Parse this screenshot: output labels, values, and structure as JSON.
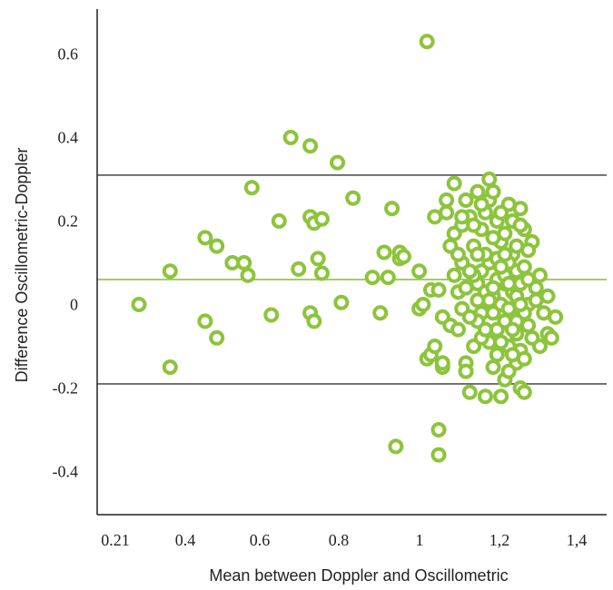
{
  "chart_data": {
    "type": "scatter",
    "xlabel": "Mean between Doppler and Oscillometric",
    "ylabel": "Difference Oscillometric-Doppler",
    "xlim": [
      0.21,
      1.4
    ],
    "ylim": [
      -0.48,
      0.7
    ],
    "x_ticks": [
      {
        "value": 0.21,
        "label": "0.21"
      },
      {
        "value": 0.4,
        "label": "0.4"
      },
      {
        "value": 0.6,
        "label": "0.6"
      },
      {
        "value": 0.8,
        "label": "0.8"
      },
      {
        "value": 1.0,
        "label": "1"
      },
      {
        "value": 1.2,
        "label": "1,2"
      },
      {
        "value": 1.4,
        "label": "1,4"
      }
    ],
    "y_ticks": [
      {
        "value": 0.6,
        "label": "0.6"
      },
      {
        "value": 0.4,
        "label": "0.4"
      },
      {
        "value": 0.2,
        "label": "0.2"
      },
      {
        "value": 0.0,
        "label": "0"
      },
      {
        "value": -0.2,
        "label": "-0.2"
      },
      {
        "value": -0.4,
        "label": "-0.4"
      }
    ],
    "grid": false,
    "reference_lines": [
      {
        "y": 0.31,
        "color": "#555555"
      },
      {
        "y": 0.06,
        "color": "#8cc43c"
      },
      {
        "y": -0.19,
        "color": "#555555"
      }
    ],
    "marker_color": "#8cc43c",
    "points": [
      {
        "x": 0.28,
        "y": 0.0
      },
      {
        "x": 0.36,
        "y": -0.15
      },
      {
        "x": 0.36,
        "y": 0.08
      },
      {
        "x": 0.45,
        "y": 0.16
      },
      {
        "x": 0.45,
        "y": -0.04
      },
      {
        "x": 0.48,
        "y": 0.14
      },
      {
        "x": 0.48,
        "y": -0.08
      },
      {
        "x": 0.52,
        "y": 0.1
      },
      {
        "x": 0.55,
        "y": 0.1
      },
      {
        "x": 0.56,
        "y": 0.07
      },
      {
        "x": 0.57,
        "y": 0.28
      },
      {
        "x": 0.62,
        "y": -0.025
      },
      {
        "x": 0.64,
        "y": 0.2
      },
      {
        "x": 0.67,
        "y": 0.4
      },
      {
        "x": 0.69,
        "y": 0.085
      },
      {
        "x": 0.72,
        "y": 0.38
      },
      {
        "x": 0.72,
        "y": 0.21
      },
      {
        "x": 0.73,
        "y": 0.195
      },
      {
        "x": 0.72,
        "y": -0.02
      },
      {
        "x": 0.73,
        "y": -0.04
      },
      {
        "x": 0.74,
        "y": 0.11
      },
      {
        "x": 0.75,
        "y": 0.075
      },
      {
        "x": 0.75,
        "y": 0.205
      },
      {
        "x": 0.79,
        "y": 0.34
      },
      {
        "x": 0.8,
        "y": 0.005
      },
      {
        "x": 0.83,
        "y": 0.255
      },
      {
        "x": 0.88,
        "y": 0.065
      },
      {
        "x": 0.9,
        "y": -0.02
      },
      {
        "x": 0.91,
        "y": 0.125
      },
      {
        "x": 0.92,
        "y": 0.065
      },
      {
        "x": 0.93,
        "y": 0.23
      },
      {
        "x": 0.94,
        "y": -0.34
      },
      {
        "x": 0.95,
        "y": 0.11
      },
      {
        "x": 0.95,
        "y": 0.125
      },
      {
        "x": 0.96,
        "y": 0.115
      },
      {
        "x": 1.0,
        "y": -0.01
      },
      {
        "x": 1.0,
        "y": 0.08
      },
      {
        "x": 1.01,
        "y": 0.0
      },
      {
        "x": 1.02,
        "y": 0.63
      },
      {
        "x": 1.02,
        "y": -0.13
      },
      {
        "x": 1.03,
        "y": 0.035
      },
      {
        "x": 1.03,
        "y": -0.12
      },
      {
        "x": 1.04,
        "y": 0.21
      },
      {
        "x": 1.04,
        "y": -0.1
      },
      {
        "x": 1.05,
        "y": 0.035
      },
      {
        "x": 1.05,
        "y": -0.3
      },
      {
        "x": 1.05,
        "y": -0.36
      },
      {
        "x": 1.06,
        "y": -0.15
      },
      {
        "x": 1.06,
        "y": -0.03
      },
      {
        "x": 1.06,
        "y": -0.14
      },
      {
        "x": 1.07,
        "y": 0.25
      },
      {
        "x": 1.07,
        "y": 0.22
      },
      {
        "x": 1.08,
        "y": 0.14
      },
      {
        "x": 1.08,
        "y": -0.05
      },
      {
        "x": 1.09,
        "y": 0.29
      },
      {
        "x": 1.09,
        "y": 0.17
      },
      {
        "x": 1.09,
        "y": 0.07
      },
      {
        "x": 1.1,
        "y": -0.06
      },
      {
        "x": 1.1,
        "y": 0.03
      },
      {
        "x": 1.11,
        "y": 0.1
      },
      {
        "x": 1.11,
        "y": -0.01
      },
      {
        "x": 1.12,
        "y": -0.14
      },
      {
        "x": 1.12,
        "y": -0.16
      },
      {
        "x": 1.12,
        "y": 0.25
      },
      {
        "x": 1.13,
        "y": -0.21
      },
      {
        "x": 1.13,
        "y": 0.21
      },
      {
        "x": 1.14,
        "y": 0.14
      },
      {
        "x": 1.14,
        "y": -0.1
      },
      {
        "x": 1.15,
        "y": 0.27
      },
      {
        "x": 1.15,
        "y": 0.05
      },
      {
        "x": 1.16,
        "y": 0.18
      },
      {
        "x": 1.16,
        "y": -0.02
      },
      {
        "x": 1.17,
        "y": -0.22
      },
      {
        "x": 1.17,
        "y": 0.22
      },
      {
        "x": 1.18,
        "y": 0.1
      },
      {
        "x": 1.18,
        "y": 0.3
      },
      {
        "x": 1.19,
        "y": -0.15
      },
      {
        "x": 1.19,
        "y": 0.02
      },
      {
        "x": 1.2,
        "y": 0.2
      },
      {
        "x": 1.2,
        "y": -0.06
      },
      {
        "x": 1.21,
        "y": -0.22
      },
      {
        "x": 1.21,
        "y": 0.15
      },
      {
        "x": 1.22,
        "y": -0.18
      },
      {
        "x": 1.22,
        "y": 0.05
      },
      {
        "x": 1.23,
        "y": 0.24
      },
      {
        "x": 1.23,
        "y": -0.1
      },
      {
        "x": 1.24,
        "y": 0.12
      },
      {
        "x": 1.24,
        "y": -0.03
      },
      {
        "x": 1.25,
        "y": -0.14
      },
      {
        "x": 1.25,
        "y": 0.08
      },
      {
        "x": 1.26,
        "y": 0.23
      },
      {
        "x": 1.26,
        "y": -0.2
      },
      {
        "x": 1.27,
        "y": -0.21
      },
      {
        "x": 1.27,
        "y": 0.18
      },
      {
        "x": 1.28,
        "y": 0.0
      },
      {
        "x": 1.28,
        "y": -0.05
      },
      {
        "x": 1.29,
        "y": 0.15
      },
      {
        "x": 1.3,
        "y": 0.04
      },
      {
        "x": 1.31,
        "y": -0.1
      },
      {
        "x": 1.31,
        "y": 0.07
      },
      {
        "x": 1.32,
        "y": -0.02
      },
      {
        "x": 1.33,
        "y": -0.07
      },
      {
        "x": 1.33,
        "y": 0.02
      },
      {
        "x": 1.34,
        "y": -0.08
      },
      {
        "x": 1.35,
        "y": -0.03
      },
      {
        "x": 1.14,
        "y": 0.19
      },
      {
        "x": 1.15,
        "y": -0.04
      },
      {
        "x": 1.16,
        "y": 0.08
      },
      {
        "x": 1.17,
        "y": 0.12
      },
      {
        "x": 1.18,
        "y": -0.09
      },
      {
        "x": 1.18,
        "y": 0.25
      },
      {
        "x": 1.19,
        "y": 0.16
      },
      {
        "x": 1.2,
        "y": -0.12
      },
      {
        "x": 1.2,
        "y": 0.06
      },
      {
        "x": 1.21,
        "y": 0.0
      },
      {
        "x": 1.21,
        "y": 0.22
      },
      {
        "x": 1.22,
        "y": -0.04
      },
      {
        "x": 1.22,
        "y": 0.17
      },
      {
        "x": 1.23,
        "y": 0.1
      },
      {
        "x": 1.23,
        "y": -0.16
      },
      {
        "x": 1.24,
        "y": 0.03
      },
      {
        "x": 1.24,
        "y": 0.2
      },
      {
        "x": 1.25,
        "y": -0.07
      },
      {
        "x": 1.25,
        "y": 0.14
      },
      {
        "x": 1.26,
        "y": 0.05
      },
      {
        "x": 1.26,
        "y": -0.11
      },
      {
        "x": 1.27,
        "y": 0.09
      },
      {
        "x": 1.27,
        "y": -0.02
      },
      {
        "x": 1.28,
        "y": 0.13
      },
      {
        "x": 1.29,
        "y": -0.08
      },
      {
        "x": 1.3,
        "y": 0.01
      },
      {
        "x": 1.12,
        "y": 0.04
      },
      {
        "x": 1.13,
        "y": -0.03
      },
      {
        "x": 1.14,
        "y": 0.07
      },
      {
        "x": 1.15,
        "y": 0.12
      },
      {
        "x": 1.16,
        "y": -0.08
      },
      {
        "x": 1.17,
        "y": 0.03
      },
      {
        "x": 1.18,
        "y": 0.01
      },
      {
        "x": 1.19,
        "y": 0.04
      },
      {
        "x": 1.2,
        "y": 0.11
      },
      {
        "x": 1.21,
        "y": -0.09
      },
      {
        "x": 1.22,
        "y": 0.07
      },
      {
        "x": 1.23,
        "y": -0.01
      },
      {
        "x": 1.24,
        "y": -0.12
      },
      {
        "x": 1.25,
        "y": 0.02
      },
      {
        "x": 1.26,
        "y": 0.19
      },
      {
        "x": 1.27,
        "y": -0.13
      },
      {
        "x": 1.28,
        "y": 0.06
      },
      {
        "x": 1.1,
        "y": 0.12
      },
      {
        "x": 1.11,
        "y": 0.19
      },
      {
        "x": 1.13,
        "y": 0.08
      },
      {
        "x": 1.15,
        "y": 0.01
      },
      {
        "x": 1.17,
        "y": -0.06
      },
      {
        "x": 1.19,
        "y": -0.02
      },
      {
        "x": 1.21,
        "y": 0.09
      },
      {
        "x": 1.23,
        "y": 0.05
      },
      {
        "x": 1.25,
        "y": -0.04
      },
      {
        "x": 1.11,
        "y": 0.21
      },
      {
        "x": 1.16,
        "y": 0.24
      },
      {
        "x": 1.19,
        "y": 0.27
      },
      {
        "x": 1.22,
        "y": 0.12
      },
      {
        "x": 1.24,
        "y": -0.06
      },
      {
        "x": 1.26,
        "y": 0.0
      }
    ]
  }
}
